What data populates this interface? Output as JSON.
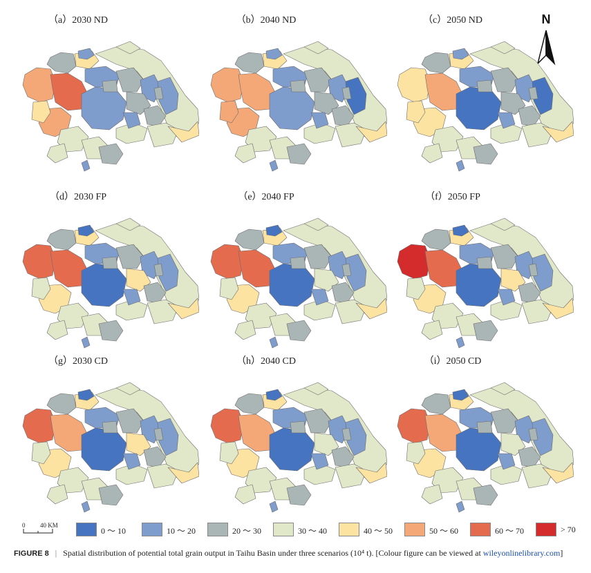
{
  "compass": {
    "label": "N"
  },
  "scale_bar": {
    "zero": "0",
    "distance": "40 KM"
  },
  "legend": [
    {
      "label": "0 ～ 10",
      "color": "#4674c1"
    },
    {
      "label": "10 ～ 20",
      "color": "#7e9ccc"
    },
    {
      "label": "20 ～ 30",
      "color": "#aab5b5"
    },
    {
      "label": "30 ～ 40",
      "color": "#e1e8c9"
    },
    {
      "label": "40 ～ 50",
      "color": "#fde3a1"
    },
    {
      "label": "50 ～ 60",
      "color": "#f4a877"
    },
    {
      "label": "60 ～ 70",
      "color": "#e56b4e"
    },
    {
      "label": "> 70",
      "color": "#d42c2c"
    }
  ],
  "panels": [
    {
      "title": "（a）2030 ND",
      "classes": [
        3,
        2,
        4,
        5,
        6,
        5,
        4,
        1,
        1,
        2,
        1,
        1,
        2,
        3,
        1,
        2,
        3,
        3,
        1,
        3,
        2,
        3,
        1,
        2,
        2,
        4,
        3
      ]
    },
    {
      "title": "（b）2040 ND",
      "classes": [
        3,
        2,
        4,
        5,
        5,
        5,
        5,
        1,
        1,
        2,
        1,
        0,
        2,
        3,
        1,
        2,
        3,
        3,
        1,
        3,
        2,
        3,
        1,
        2,
        2,
        4,
        3
      ]
    },
    {
      "title": "（c）2050 ND",
      "classes": [
        3,
        2,
        4,
        4,
        5,
        4,
        4,
        0,
        1,
        2,
        1,
        0,
        2,
        3,
        1,
        2,
        3,
        3,
        1,
        3,
        2,
        3,
        1,
        2,
        2,
        4,
        3
      ]
    },
    {
      "title": "（d）2030 FP",
      "classes": [
        3,
        2,
        4,
        6,
        6,
        4,
        3,
        0,
        1,
        2,
        1,
        1,
        4,
        3,
        1,
        2,
        3,
        3,
        0,
        3,
        2,
        3,
        1,
        2,
        2,
        4,
        3
      ]
    },
    {
      "title": "（e）2040 FP",
      "classes": [
        3,
        2,
        4,
        6,
        6,
        4,
        3,
        0,
        1,
        2,
        1,
        1,
        3,
        3,
        1,
        2,
        3,
        3,
        0,
        3,
        2,
        3,
        1,
        2,
        2,
        4,
        3
      ]
    },
    {
      "title": "（f）2050 FP",
      "classes": [
        3,
        2,
        4,
        7,
        6,
        4,
        3,
        0,
        1,
        2,
        1,
        1,
        4,
        3,
        1,
        2,
        3,
        3,
        0,
        3,
        2,
        3,
        1,
        2,
        2,
        4,
        3
      ]
    },
    {
      "title": "（g）2030 CD",
      "classes": [
        3,
        2,
        4,
        6,
        5,
        4,
        3,
        0,
        1,
        2,
        1,
        1,
        4,
        3,
        1,
        2,
        3,
        3,
        0,
        3,
        2,
        3,
        1,
        2,
        2,
        4,
        3
      ]
    },
    {
      "title": "（h）2040 CD",
      "classes": [
        3,
        2,
        4,
        6,
        5,
        4,
        3,
        0,
        1,
        2,
        1,
        1,
        3,
        3,
        1,
        2,
        3,
        3,
        0,
        3,
        2,
        3,
        1,
        2,
        2,
        4,
        3
      ]
    },
    {
      "title": "（i）2050 CD",
      "classes": [
        3,
        2,
        4,
        6,
        5,
        4,
        3,
        0,
        1,
        2,
        1,
        1,
        3,
        3,
        1,
        2,
        3,
        3,
        0,
        3,
        2,
        3,
        1,
        2,
        2,
        4,
        3
      ]
    }
  ],
  "caption": {
    "label": "FIGURE 8",
    "separator": "|",
    "text": "Spatial distribution of potential total grain output in Taihu Basin under three scenarios (10⁴ t). [Colour figure can be viewed at ",
    "link": "wileyonlinelibrary.com",
    "end": "]"
  }
}
